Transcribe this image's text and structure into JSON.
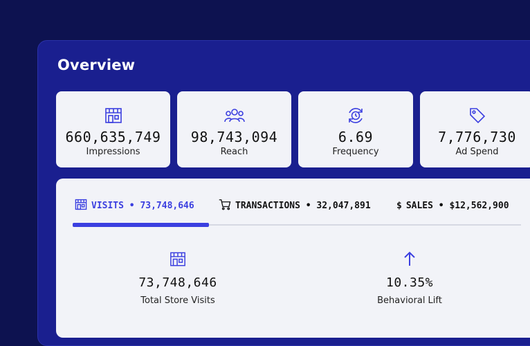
{
  "header": {
    "title": "Overview"
  },
  "cards": [
    {
      "icon": "storefront-icon",
      "value": "660,635,749",
      "label": "Impressions"
    },
    {
      "icon": "people-icon",
      "value": "98,743,094",
      "label": "Reach"
    },
    {
      "icon": "refresh-clock-icon",
      "value": "6.69",
      "label": "Frequency"
    },
    {
      "icon": "price-tag-icon",
      "value": "7,776,730",
      "label": "Ad Spend"
    }
  ],
  "tabs": [
    {
      "icon": "storefront-icon",
      "label": "VISITS • 73,748,646",
      "active": true
    },
    {
      "icon": "cart-icon",
      "label": "TRANSACTIONS • 32,047,891",
      "active": false
    },
    {
      "icon": "dollar-icon",
      "label": "SALES • $12,562,900",
      "active": false,
      "prefix": "$"
    }
  ],
  "metrics": [
    {
      "icon": "storefront-icon",
      "value": "73,748,646",
      "label": "Total Store Visits"
    },
    {
      "icon": "arrow-up-icon",
      "value": "10.35%",
      "label": "Behavioral Lift"
    }
  ],
  "colors": {
    "accent": "#3b3fe0",
    "panel": "#1a1f8f",
    "background": "#0d1250",
    "card": "#f2f3f8"
  }
}
